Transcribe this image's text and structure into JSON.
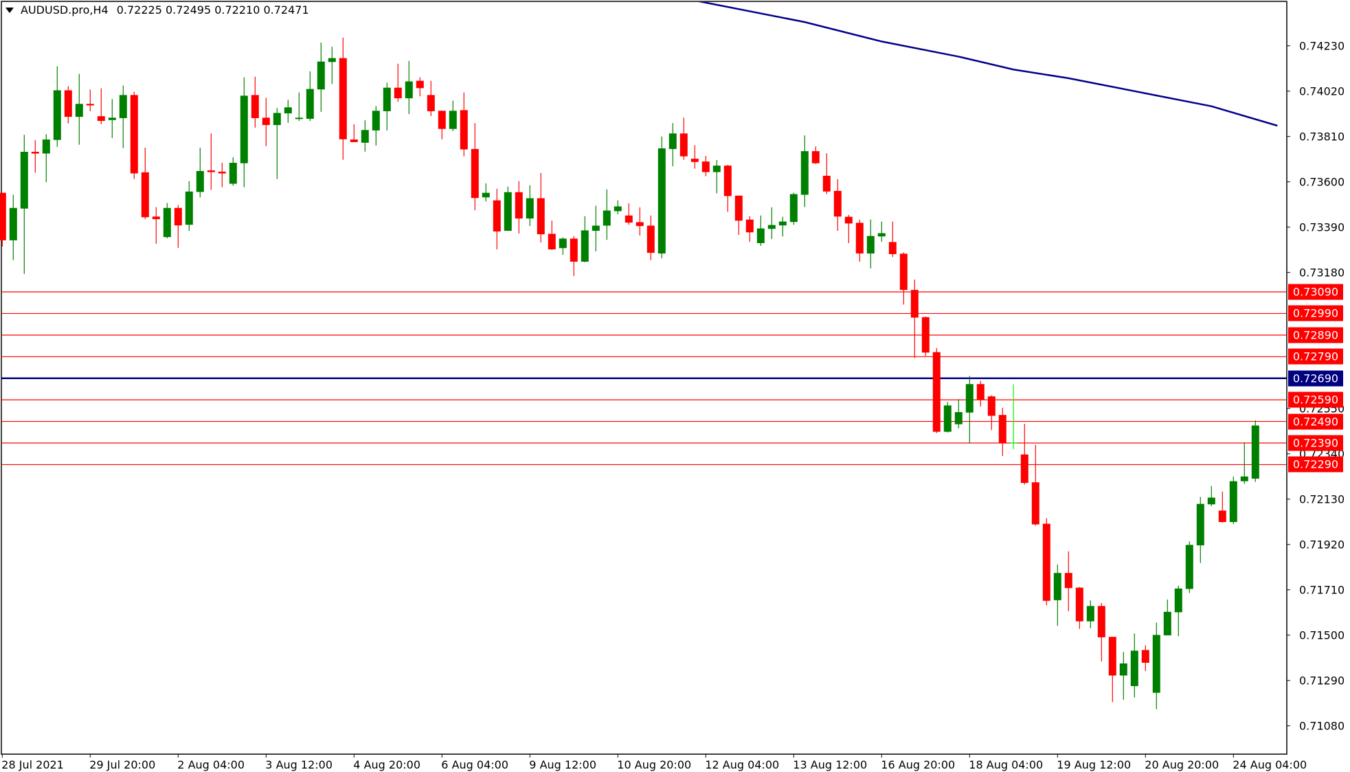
{
  "header": {
    "symbol": "AUDUSD.pro,H4",
    "ohlc": "0.72225 0.72495 0.72210 0.72471"
  },
  "chart_data": {
    "type": "candlestick",
    "title": "AUDUSD.pro,H4",
    "ohlc_fields": [
      "open",
      "high",
      "low",
      "close"
    ],
    "timeframe": "H4",
    "ylim": [
      0.7085,
      0.7446
    ],
    "grid": false,
    "colors": {
      "bull": "#008000",
      "bear": "#ff0000",
      "doji": "#00ff00",
      "ma": "#00008b",
      "level": "#ff0000",
      "pivot_level": "#000080"
    },
    "y_ticks": [
      "0.74230",
      "0.74020",
      "0.73810",
      "0.73600",
      "0.73390",
      "0.73180",
      "0.72550",
      "0.72340",
      "0.72130",
      "0.71920",
      "0.71710",
      "0.71500",
      "0.71290",
      "0.71080"
    ],
    "x_ticks": [
      {
        "bar": 0,
        "label": "28 Jul 2021"
      },
      {
        "bar": 8,
        "label": "29 Jul 20:00"
      },
      {
        "bar": 16,
        "label": "2 Aug 04:00"
      },
      {
        "bar": 24,
        "label": "3 Aug 12:00"
      },
      {
        "bar": 32,
        "label": "4 Aug 20:00"
      },
      {
        "bar": 40,
        "label": "6 Aug 04:00"
      },
      {
        "bar": 48,
        "label": "9 Aug 12:00"
      },
      {
        "bar": 56,
        "label": "10 Aug 20:00"
      },
      {
        "bar": 64,
        "label": "12 Aug 04:00"
      },
      {
        "bar": 72,
        "label": "13 Aug 12:00"
      },
      {
        "bar": 80,
        "label": "16 Aug 20:00"
      },
      {
        "bar": 88,
        "label": "18 Aug 04:00"
      },
      {
        "bar": 96,
        "label": "19 Aug 12:00"
      },
      {
        "bar": 104,
        "label": "20 Aug 20:00"
      },
      {
        "bar": 112,
        "label": "24 Aug 04:00"
      }
    ],
    "levels": [
      {
        "price": 0.7309,
        "label": "0.73090",
        "color": "#ff0000"
      },
      {
        "price": 0.7299,
        "label": "0.72990",
        "color": "#ff0000"
      },
      {
        "price": 0.7289,
        "label": "0.72890",
        "color": "#ff0000"
      },
      {
        "price": 0.7279,
        "label": "0.72790",
        "color": "#ff0000"
      },
      {
        "price": 0.7269,
        "label": "0.72690",
        "color": "#000080"
      },
      {
        "price": 0.7259,
        "label": "0.72590",
        "color": "#ff0000"
      },
      {
        "price": 0.7249,
        "label": "0.72490",
        "color": "#ff0000"
      },
      {
        "price": 0.7239,
        "label": "0.72390",
        "color": "#ff0000"
      },
      {
        "price": 0.7229,
        "label": "0.72290",
        "color": "#ff0000"
      }
    ],
    "moving_average": [
      [
        63,
        0.7444
      ],
      [
        73,
        0.7434
      ],
      [
        80,
        0.7425
      ],
      [
        87,
        0.7418
      ],
      [
        92,
        0.7412
      ],
      [
        97,
        0.7408
      ],
      [
        104,
        0.7401
      ],
      [
        110,
        0.7395
      ],
      [
        116,
        0.7386
      ]
    ],
    "candles": [
      [
        0.73549,
        0.73549,
        0.733,
        0.73329
      ],
      [
        0.73329,
        0.7354,
        0.73237,
        0.73479
      ],
      [
        0.73476,
        0.73818,
        0.73173,
        0.73739
      ],
      [
        0.73739,
        0.73793,
        0.73642,
        0.73731
      ],
      [
        0.73731,
        0.73821,
        0.73598,
        0.73796
      ],
      [
        0.73794,
        0.74135,
        0.73762,
        0.74024
      ],
      [
        0.74024,
        0.74043,
        0.7387,
        0.73901
      ],
      [
        0.73901,
        0.741,
        0.73772,
        0.73961
      ],
      [
        0.73961,
        0.74027,
        0.73927,
        0.73954
      ],
      [
        0.73904,
        0.74033,
        0.73867,
        0.73882
      ],
      [
        0.73886,
        0.73983,
        0.73803,
        0.73897
      ],
      [
        0.73895,
        0.74046,
        0.73756,
        0.74002
      ],
      [
        0.74002,
        0.74017,
        0.73613,
        0.73639
      ],
      [
        0.73644,
        0.73758,
        0.73427,
        0.73436
      ],
      [
        0.73439,
        0.73483,
        0.73313,
        0.73427
      ],
      [
        0.73344,
        0.73502,
        0.73338,
        0.73479
      ],
      [
        0.73479,
        0.73492,
        0.73294,
        0.73398
      ],
      [
        0.73401,
        0.73603,
        0.73373,
        0.73555
      ],
      [
        0.73553,
        0.73758,
        0.73528,
        0.7365
      ],
      [
        0.73653,
        0.73824,
        0.73563,
        0.73645
      ],
      [
        0.73647,
        0.73688,
        0.73575,
        0.73639
      ],
      [
        0.73591,
        0.73714,
        0.73582,
        0.73688
      ],
      [
        0.73686,
        0.74084,
        0.73575,
        0.73999
      ],
      [
        0.74002,
        0.74087,
        0.73851,
        0.73895
      ],
      [
        0.73897,
        0.73989,
        0.73765,
        0.73863
      ],
      [
        0.73863,
        0.73942,
        0.73613,
        0.73919
      ],
      [
        0.73917,
        0.7398,
        0.73873,
        0.73945
      ],
      [
        0.73892,
        0.74014,
        0.73882,
        0.73897
      ],
      [
        0.73892,
        0.74112,
        0.73882,
        0.7403
      ],
      [
        0.74028,
        0.74245,
        0.73924,
        0.74157
      ],
      [
        0.74155,
        0.74226,
        0.74053,
        0.74173
      ],
      [
        0.74173,
        0.74268,
        0.73702,
        0.73797
      ],
      [
        0.73796,
        0.73866,
        0.73784,
        0.73784
      ],
      [
        0.73781,
        0.73885,
        0.7374,
        0.7384
      ],
      [
        0.73838,
        0.73951,
        0.73768,
        0.73929
      ],
      [
        0.73927,
        0.74059,
        0.73838,
        0.74036
      ],
      [
        0.74036,
        0.74147,
        0.73971,
        0.73987
      ],
      [
        0.73987,
        0.7416,
        0.73914,
        0.74065
      ],
      [
        0.74068,
        0.74084,
        0.73996,
        0.74034
      ],
      [
        0.74002,
        0.74068,
        0.73905,
        0.73927
      ],
      [
        0.73929,
        0.73929,
        0.73797,
        0.73845
      ],
      [
        0.73845,
        0.73976,
        0.73835,
        0.73929
      ],
      [
        0.73932,
        0.74014,
        0.73718,
        0.7375
      ],
      [
        0.73752,
        0.73872,
        0.73468,
        0.73525
      ],
      [
        0.73528,
        0.73593,
        0.73509,
        0.73549
      ],
      [
        0.73514,
        0.73568,
        0.73287,
        0.7337
      ],
      [
        0.73373,
        0.73578,
        0.73373,
        0.73552
      ],
      [
        0.73552,
        0.73603,
        0.7336,
        0.7343
      ],
      [
        0.7343,
        0.73584,
        0.73395,
        0.73524
      ],
      [
        0.73524,
        0.73641,
        0.73319,
        0.73357
      ],
      [
        0.73359,
        0.7342,
        0.73284,
        0.73287
      ],
      [
        0.73293,
        0.73343,
        0.73262,
        0.73337
      ],
      [
        0.73337,
        0.73349,
        0.73164,
        0.7323
      ],
      [
        0.7323,
        0.73441,
        0.73227,
        0.73375
      ],
      [
        0.73373,
        0.73489,
        0.73278,
        0.73397
      ],
      [
        0.73397,
        0.73565,
        0.73331,
        0.73467
      ],
      [
        0.73464,
        0.73514,
        0.73449,
        0.73486
      ],
      [
        0.73444,
        0.73501,
        0.73401,
        0.73411
      ],
      [
        0.73413,
        0.73482,
        0.73351,
        0.73395
      ],
      [
        0.73397,
        0.73444,
        0.73237,
        0.73271
      ],
      [
        0.73268,
        0.7381,
        0.73246,
        0.73755
      ],
      [
        0.73752,
        0.73872,
        0.73672,
        0.73824
      ],
      [
        0.73824,
        0.73897,
        0.73702,
        0.73718
      ],
      [
        0.73707,
        0.7377,
        0.73661,
        0.73692
      ],
      [
        0.73694,
        0.7372,
        0.73626,
        0.73645
      ],
      [
        0.73645,
        0.73701,
        0.73547,
        0.73675
      ],
      [
        0.73675,
        0.73678,
        0.73461,
        0.73534
      ],
      [
        0.73536,
        0.73536,
        0.73354,
        0.7342
      ],
      [
        0.73425,
        0.73441,
        0.73322,
        0.73366
      ],
      [
        0.73316,
        0.73444,
        0.73303,
        0.73384
      ],
      [
        0.73382,
        0.73482,
        0.73335,
        0.734
      ],
      [
        0.73398,
        0.73438,
        0.73347,
        0.73416
      ],
      [
        0.73414,
        0.73549,
        0.73401,
        0.73543
      ],
      [
        0.7354,
        0.73815,
        0.73483,
        0.73742
      ],
      [
        0.73742,
        0.73764,
        0.73683,
        0.73686
      ],
      [
        0.73628,
        0.73732,
        0.73543,
        0.73555
      ],
      [
        0.73558,
        0.73612,
        0.73373,
        0.73439
      ],
      [
        0.73438,
        0.73447,
        0.73316,
        0.73407
      ],
      [
        0.7341,
        0.73425,
        0.7323,
        0.73268
      ],
      [
        0.73268,
        0.73425,
        0.73199,
        0.73349
      ],
      [
        0.73347,
        0.73416,
        0.73322,
        0.73362
      ],
      [
        0.73321,
        0.73416,
        0.73252,
        0.73265
      ],
      [
        0.73267,
        0.73273,
        0.73031,
        0.73099
      ],
      [
        0.73099,
        0.73147,
        0.72784,
        0.72971
      ],
      [
        0.72973,
        0.72976,
        0.72793,
        0.72809
      ],
      [
        0.72811,
        0.7283,
        0.72436,
        0.72442
      ],
      [
        0.72442,
        0.7258,
        0.72439,
        0.72564
      ],
      [
        0.72477,
        0.72593,
        0.72458,
        0.72533
      ],
      [
        0.72531,
        0.72701,
        0.72388,
        0.72663
      ],
      [
        0.72663,
        0.72678,
        0.72559,
        0.72591
      ],
      [
        0.72606,
        0.72611,
        0.7245,
        0.72516
      ],
      [
        0.7252,
        0.72553,
        0.7233,
        0.72389
      ],
      [
        0.7239,
        0.72662,
        0.72362,
        0.7239
      ],
      [
        0.72337,
        0.72479,
        0.72197,
        0.72205
      ],
      [
        0.72208,
        0.72382,
        0.72007,
        0.72013
      ],
      [
        0.72016,
        0.72042,
        0.71638,
        0.71659
      ],
      [
        0.71662,
        0.71827,
        0.71543,
        0.71788
      ],
      [
        0.71788,
        0.71888,
        0.71611,
        0.71718
      ],
      [
        0.7172,
        0.71723,
        0.71529,
        0.71564
      ],
      [
        0.71564,
        0.71661,
        0.71532,
        0.71635
      ],
      [
        0.71635,
        0.71649,
        0.71378,
        0.7149
      ],
      [
        0.71492,
        0.71492,
        0.7119,
        0.71313
      ],
      [
        0.71313,
        0.71422,
        0.71201,
        0.71369
      ],
      [
        0.71264,
        0.71507,
        0.71211,
        0.71428
      ],
      [
        0.71431,
        0.71453,
        0.71334,
        0.71372
      ],
      [
        0.71233,
        0.71558,
        0.71157,
        0.71501
      ],
      [
        0.71499,
        0.71665,
        0.71499,
        0.71608
      ],
      [
        0.71606,
        0.71729,
        0.71495,
        0.71716
      ],
      [
        0.71714,
        0.71934,
        0.71695,
        0.71918
      ],
      [
        0.71916,
        0.7214,
        0.71834,
        0.72108
      ],
      [
        0.72106,
        0.72191,
        0.72097,
        0.72137
      ],
      [
        0.72077,
        0.72165,
        0.72021,
        0.72024
      ],
      [
        0.72024,
        0.72235,
        0.72015,
        0.72213
      ],
      [
        0.72213,
        0.72393,
        0.72201,
        0.72235
      ],
      [
        0.72225,
        0.72495,
        0.7221,
        0.72471
      ]
    ]
  }
}
